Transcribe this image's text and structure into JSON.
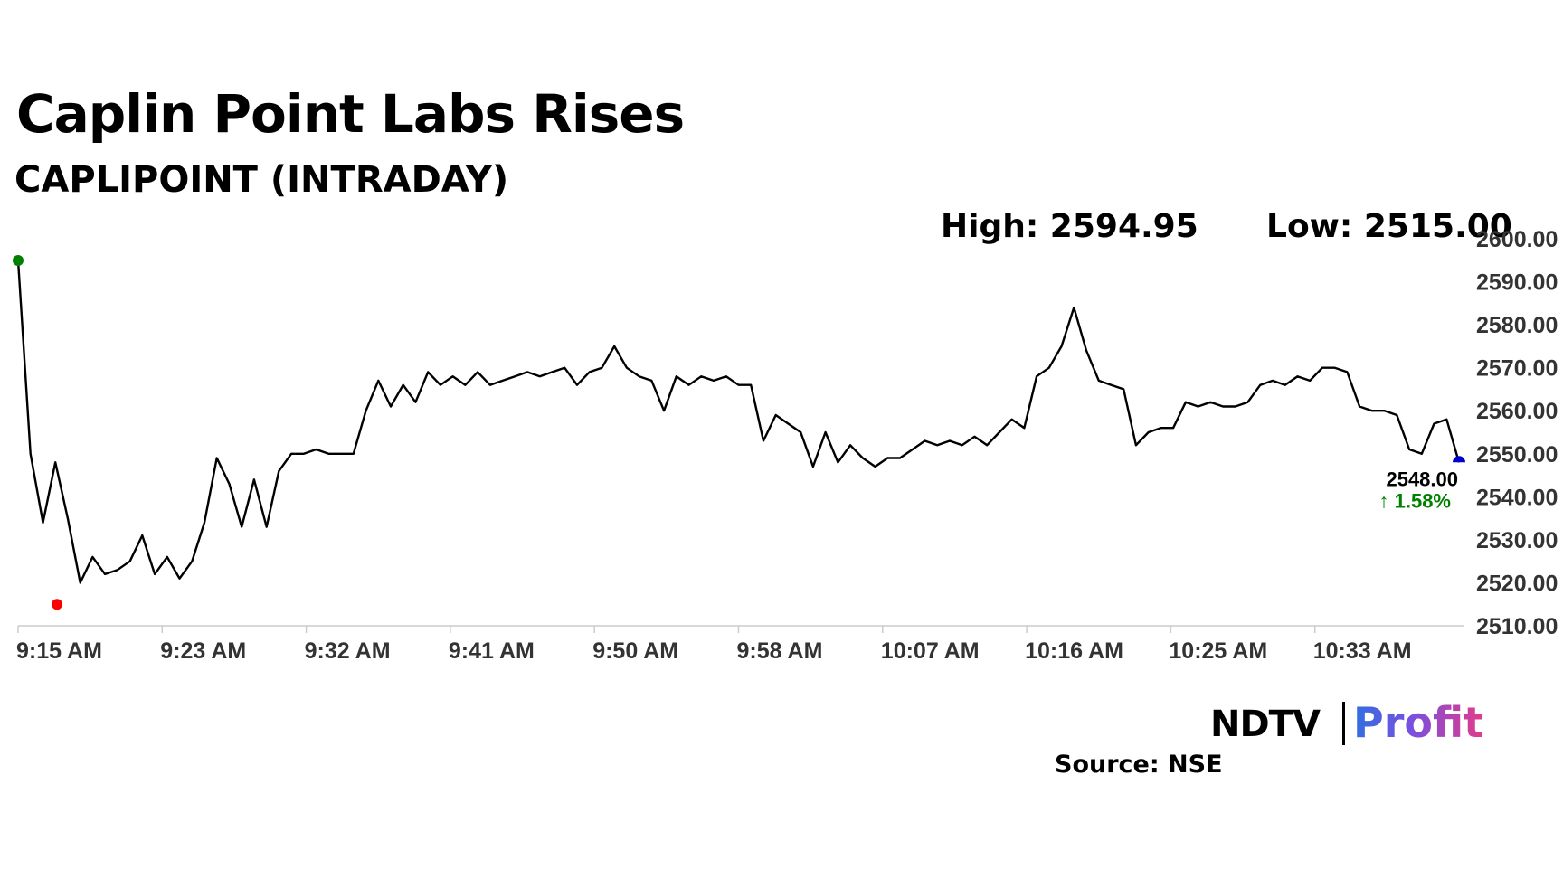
{
  "header": {
    "title": "Caplin Point Labs Rises",
    "subtitle": "CAPLIPOINT (INTRADAY)"
  },
  "stats": {
    "high_label": "High: 2594.95",
    "low_label": "Low: 2515.00"
  },
  "footer": {
    "source": "Source: NSE",
    "logo_brand": "NDTV",
    "logo_product": "Profit"
  },
  "colors": {
    "line": "#000000",
    "high_dot": "#008000",
    "low_dot": "#ff0000",
    "last_dot": "#0000cc",
    "change_up": "#008000",
    "axis": "#cccccc"
  },
  "chart_data": {
    "type": "line",
    "x_axis": "time",
    "x_ticks": [
      "9:15 AM",
      "9:23 AM",
      "9:32 AM",
      "9:41 AM",
      "9:50 AM",
      "9:58 AM",
      "10:07 AM",
      "10:16 AM",
      "10:25 AM",
      "10:33 AM"
    ],
    "x_range": [
      "9:15 AM",
      "10:38 AM"
    ],
    "y_ticks": [
      "2600.00",
      "2590.00",
      "2580.00",
      "2570.00",
      "2560.00",
      "2550.00",
      "2540.00",
      "2530.00",
      "2520.00",
      "2510.00"
    ],
    "ylim": [
      2510,
      2600
    ],
    "y_axis_position": "right",
    "grid": false,
    "series": [
      {
        "values": [
          2595,
          2550,
          2534,
          2548,
          2535,
          2520,
          2526,
          2522,
          2523,
          2525,
          2531,
          2522,
          2526,
          2521,
          2525,
          2534,
          2549,
          2543,
          2533,
          2544,
          2533,
          2546,
          2550,
          2550,
          2551,
          2550,
          2550,
          2550,
          2560,
          2567,
          2561,
          2566,
          2562,
          2569,
          2566,
          2568,
          2566,
          2569,
          2566,
          2567,
          2568,
          2569,
          2568,
          2569,
          2570,
          2566,
          2569,
          2570,
          2575,
          2570,
          2568,
          2567,
          2560,
          2568,
          2566,
          2568,
          2567,
          2568,
          2566,
          2566,
          2553,
          2559,
          2557,
          2555,
          2547,
          2555,
          2548,
          2552,
          2549,
          2547,
          2549,
          2549,
          2551,
          2553,
          2552,
          2553,
          2552,
          2554,
          2552,
          2555,
          2558,
          2556,
          2568,
          2570,
          2575,
          2584,
          2574,
          2567,
          2566,
          2565,
          2552,
          2555,
          2556,
          2556,
          2562,
          2561,
          2562,
          2561,
          2561,
          2562,
          2566,
          2567,
          2566,
          2568,
          2567,
          2570,
          2570,
          2569,
          2561,
          2560,
          2560,
          2559,
          2551,
          2550,
          2557,
          2558,
          2548
        ],
        "last_value": "2548.00",
        "change": "↑ 1.58%",
        "high": 2594.95,
        "low": 2515.0
      }
    ]
  }
}
